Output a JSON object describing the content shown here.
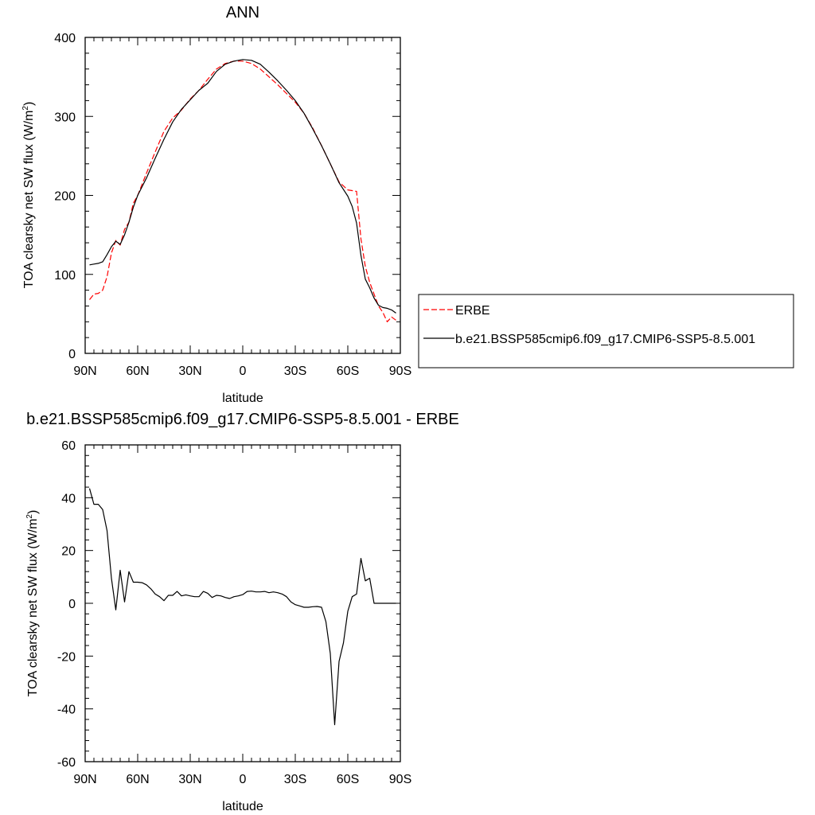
{
  "chart_data": [
    {
      "type": "line",
      "title": "ANN",
      "xlabel": "latitude",
      "ylabel": "TOA clearsky net SW flux (W/m",
      "ylabel_sup": "2",
      "ylabel_tail": ")",
      "xlim": [
        90,
        -90
      ],
      "ylim": [
        0,
        400
      ],
      "x_tick_values": [
        90,
        60,
        30,
        0,
        -30,
        -60,
        -90
      ],
      "x_tick_labels": [
        "90N",
        "60N",
        "30N",
        "0",
        "30S",
        "60S",
        "90S"
      ],
      "y_tick_values": [
        0,
        100,
        200,
        300,
        400
      ],
      "y_tick_labels": [
        "0",
        "100",
        "200",
        "300",
        "400"
      ],
      "grid": false,
      "legend_position": "right",
      "series": [
        {
          "name": "ERBE",
          "color": "#ff0000",
          "dash": "dashed",
          "x": [
            87.5,
            85,
            82.5,
            80,
            77.5,
            75,
            72.5,
            70,
            67.5,
            65,
            62.5,
            60,
            55,
            50,
            45,
            40,
            35,
            30,
            25,
            20,
            15,
            10,
            5,
            0,
            -5,
            -10,
            -15,
            -20,
            -25,
            -30,
            -35,
            -40,
            -45,
            -50,
            -55,
            -60,
            -62.5,
            -65,
            -67.5,
            -70,
            -72.5,
            -75,
            -77.5,
            -80,
            -82.5,
            -85,
            -87.5
          ],
          "y": [
            68,
            75,
            76,
            80,
            97,
            127,
            143,
            137,
            157,
            166,
            190,
            200,
            228,
            255,
            281,
            298,
            308,
            322,
            333,
            347,
            360,
            367,
            370,
            370,
            367,
            360,
            350,
            340,
            329,
            318,
            304,
            285,
            263,
            240,
            217,
            207,
            206,
            205,
            145,
            110,
            90,
            75,
            60,
            52,
            40,
            46,
            42
          ]
        },
        {
          "name": "b.e21.BSSP585cmip6.f09_g17.CMIP6-SSP5-8.5.001",
          "color": "#000000",
          "dash": "solid",
          "x": [
            87.5,
            85,
            82.5,
            80,
            77.5,
            75,
            72.5,
            70,
            67.5,
            65,
            62.5,
            60,
            55,
            50,
            45,
            40,
            35,
            30,
            25,
            20,
            15,
            10,
            5,
            0,
            -5,
            -10,
            -15,
            -20,
            -25,
            -30,
            -35,
            -40,
            -45,
            -50,
            -55,
            -60,
            -62.5,
            -65,
            -67.5,
            -70,
            -72.5,
            -75,
            -77.5,
            -80,
            -82.5,
            -85,
            -87.5
          ],
          "y": [
            112,
            113,
            114,
            116,
            125,
            135,
            142,
            138,
            150,
            166,
            185,
            200,
            222,
            247,
            271,
            293,
            309,
            321,
            333,
            342,
            357,
            366,
            370,
            372,
            371,
            366,
            356,
            345,
            333,
            320,
            304,
            284,
            263,
            240,
            216,
            199,
            186,
            165,
            124,
            94,
            83,
            70,
            61,
            58,
            57,
            55,
            51
          ]
        }
      ]
    },
    {
      "type": "line",
      "title": "b.e21.BSSP585cmip6.f09_g17.CMIP6-SSP5-8.5.001 - ERBE",
      "xlabel": "latitude",
      "ylabel": "TOA clearsky net SW flux (W/m",
      "ylabel_sup": "2",
      "ylabel_tail": ")",
      "xlim": [
        90,
        -90
      ],
      "ylim": [
        -60,
        60
      ],
      "x_tick_values": [
        90,
        60,
        30,
        0,
        -30,
        -60,
        -90
      ],
      "x_tick_labels": [
        "90N",
        "60N",
        "30N",
        "0",
        "30S",
        "60S",
        "90S"
      ],
      "y_tick_values": [
        -60,
        -40,
        -20,
        0,
        20,
        40,
        60
      ],
      "y_tick_labels": [
        "-60",
        "-40",
        "-20",
        "0",
        "20",
        "40",
        "60"
      ],
      "grid": false,
      "series": [
        {
          "color": "#000000",
          "dash": "solid",
          "x": [
            87.5,
            85,
            82.5,
            80,
            77.5,
            75,
            72.5,
            70,
            67.5,
            65,
            62.5,
            60,
            57.5,
            55,
            52.5,
            50,
            47.5,
            45,
            42.5,
            40,
            37.5,
            35,
            32.5,
            30,
            27.5,
            25,
            22.5,
            20,
            17.5,
            15,
            12.5,
            10,
            7.5,
            5,
            2.5,
            0,
            -2.5,
            -5,
            -7.5,
            -10,
            -12.5,
            -15,
            -17.5,
            -20,
            -22.5,
            -25,
            -27.5,
            -30,
            -32.5,
            -35,
            -37.5,
            -40,
            -42.5,
            -45,
            -47.5,
            -50,
            -52.5,
            -55,
            -57.5,
            -60,
            -62.5,
            -65,
            -67.5,
            -70,
            -72.5,
            -75,
            -77.5,
            -80,
            -82.5,
            -85,
            -87.5
          ],
          "y": [
            43.5,
            37.5,
            37.5,
            35.5,
            27.5,
            9.5,
            -2.5,
            12.5,
            0.5,
            12,
            8,
            8,
            7.8,
            7,
            5.5,
            3.5,
            2.5,
            1,
            3,
            3,
            4.5,
            2.8,
            3.2,
            2.8,
            2.5,
            2.5,
            4.5,
            3.8,
            2.2,
            3,
            2.8,
            2.2,
            1.8,
            2.5,
            2.8,
            3.3,
            4.5,
            4.6,
            4.3,
            4.3,
            4.5,
            4,
            4.3,
            4,
            3.5,
            2.5,
            0.5,
            -0.5,
            -1,
            -1.5,
            -1.5,
            -1.3,
            -1.2,
            -1.5,
            -7,
            -19,
            -46,
            -22,
            -15,
            -3,
            2.5,
            3.5,
            17,
            8.5,
            9.5,
            0,
            0,
            0,
            0,
            0,
            0
          ]
        }
      ]
    }
  ]
}
